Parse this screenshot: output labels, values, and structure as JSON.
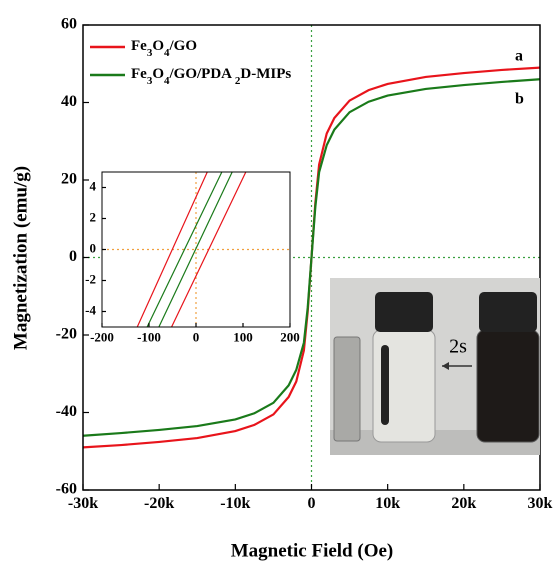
{
  "chart_data": [
    {
      "type": "line",
      "x_label": "Magnetic Field (Oe)",
      "y_label": "Magnetization (emu/g)",
      "x": [
        -30000,
        -25000,
        -20000,
        -15000,
        -10000,
        -7500,
        -5000,
        -3000,
        -2000,
        -1000,
        -500,
        0,
        500,
        1000,
        2000,
        3000,
        5000,
        7500,
        10000,
        15000,
        20000,
        25000,
        30000
      ],
      "series": [
        {
          "name": "Fe3O4/GO",
          "color": "#e8141b",
          "values": [
            -49,
            -48.4,
            -47.6,
            -46.6,
            -44.8,
            -43.2,
            -40.5,
            -36,
            -32,
            -24,
            -14,
            0,
            14,
            24,
            32,
            36,
            40.5,
            43.2,
            44.8,
            46.6,
            47.6,
            48.4,
            49
          ]
        },
        {
          "name": "Fe3O4/GO/PDA 2D-MIPs",
          "color": "#1a7a1a",
          "values": [
            -46,
            -45.3,
            -44.5,
            -43.5,
            -41.8,
            -40.2,
            -37.5,
            -33,
            -29,
            -22,
            -13,
            0,
            13,
            22,
            29,
            33,
            37.5,
            40.2,
            41.8,
            43.5,
            44.5,
            45.3,
            46
          ]
        }
      ],
      "annotations": [
        "a",
        "b"
      ],
      "photo_label": "2s",
      "xlim": [
        -30000,
        30000
      ],
      "ylim": [
        -60,
        60
      ],
      "xticks": [
        {
          "value": -30000,
          "label": "-30k"
        },
        {
          "value": -20000,
          "label": "-20k"
        },
        {
          "value": -10000,
          "label": "-10k"
        },
        0,
        {
          "value": 10000,
          "label": "10k"
        },
        {
          "value": 20000,
          "label": "20k"
        },
        {
          "value": 30000,
          "label": "30k"
        }
      ],
      "yticks": [
        -60,
        -40,
        -20,
        0,
        20,
        40,
        60
      ]
    },
    {
      "type": "line",
      "series": [
        {
          "color": "#e8141b",
          "x": [
            -125,
            24
          ],
          "values": [
            -5,
            5
          ]
        },
        {
          "color": "#1a7a1a",
          "x": [
            -104,
            55
          ],
          "values": [
            -5,
            5
          ]
        },
        {
          "color": "#1a7a1a",
          "x": [
            -79,
            77
          ],
          "values": [
            -5,
            5
          ]
        },
        {
          "color": "#e8141b",
          "x": [
            -52,
            106
          ],
          "values": [
            -5,
            5
          ]
        }
      ],
      "xlim": [
        -200,
        200
      ],
      "ylim": [
        -5,
        5
      ],
      "xticks": [
        -200,
        -100,
        0,
        100,
        200
      ],
      "yticks": [
        -4,
        -2,
        0,
        2,
        4
      ]
    }
  ]
}
